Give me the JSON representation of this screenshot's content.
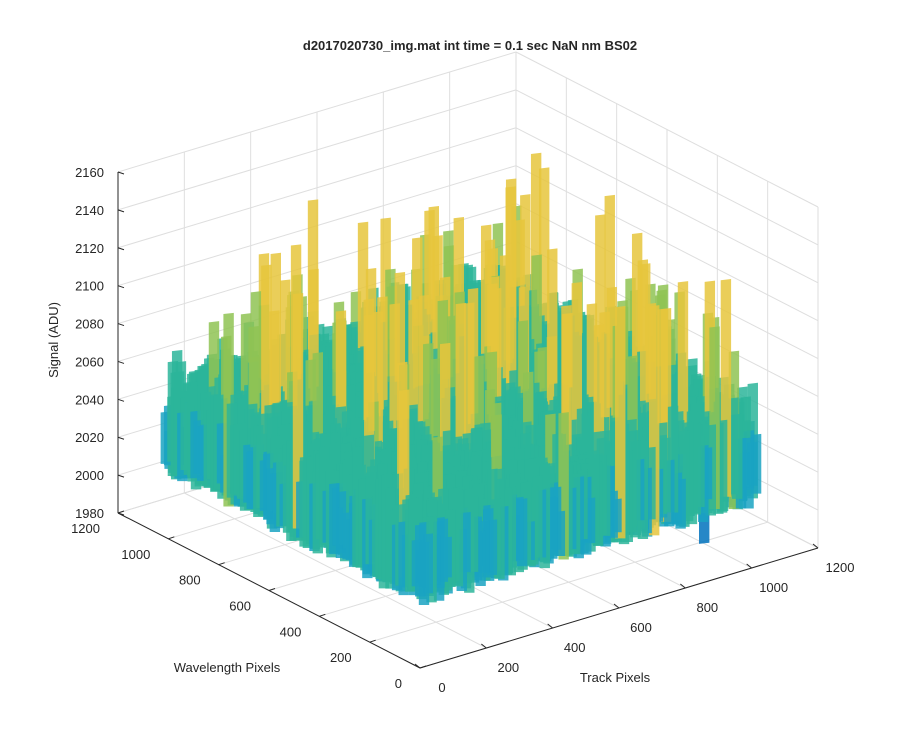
{
  "chart_data": {
    "type": "surface",
    "title": "d2017020730_img.mat int time = 0.1 sec  NaN nm BS02",
    "xlabel": "Track Pixels",
    "ylabel": "Wavelength Pixels",
    "zlabel": "Signal (ADU)",
    "xlim": [
      0,
      1200
    ],
    "ylim": [
      0,
      1200
    ],
    "zlim": [
      1980,
      2160
    ],
    "x_ticks": [
      "0",
      "200",
      "400",
      "600",
      "800",
      "1000",
      "1200"
    ],
    "y_ticks": [
      "0",
      "200",
      "400",
      "600",
      "800",
      "1000",
      "1200"
    ],
    "z_ticks": [
      "1980",
      "2000",
      "2020",
      "2040",
      "2060",
      "2080",
      "2100",
      "2120",
      "2140",
      "2160"
    ],
    "data_extent": {
      "x": [
        0,
        1024
      ],
      "y": [
        0,
        1024
      ]
    },
    "z_range": [
      1995,
      2145
    ],
    "z_typical": 2055,
    "grid": true,
    "colormap": "parula",
    "colors": {
      "low": "#0072bd",
      "mid_low": "#1aa3c2",
      "mid": "#2bb59a",
      "mid_high": "#8fc353",
      "high": "#e6c63c"
    }
  }
}
